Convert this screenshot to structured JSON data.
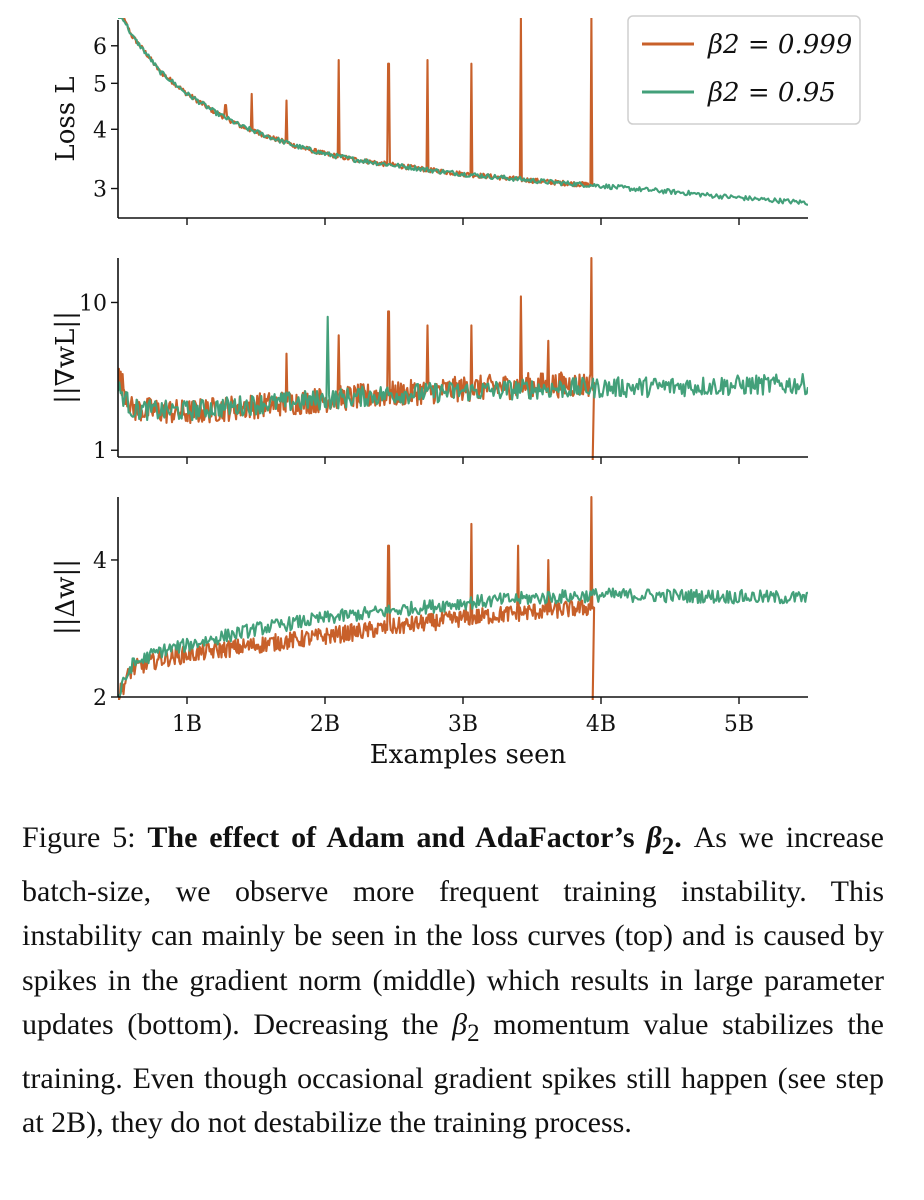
{
  "colors": {
    "orange": "#c8602a",
    "green": "#43a07a"
  },
  "chart_data": [
    {
      "type": "line",
      "panel": "loss",
      "ylabel": "Loss L",
      "yscale": "log",
      "xlim": [
        0.5,
        5.5
      ],
      "ylim": [
        2.6,
        6.8
      ],
      "yticks": [
        3,
        4,
        5,
        6
      ],
      "ytick_labels": [
        "3",
        "4",
        "5",
        "6"
      ],
      "xticks": [
        1,
        2,
        3,
        4,
        5
      ],
      "legend": {
        "location": "top-right",
        "entries": [
          "β2 = 0.999",
          "β2 = 0.95"
        ]
      },
      "series": [
        {
          "name": "β2 = 0.999",
          "color": "#c8602a",
          "x": [
            0.5,
            0.6,
            0.8,
            1.0,
            1.2,
            1.4,
            1.6,
            1.8,
            2.0,
            2.2,
            2.4,
            2.6,
            2.8,
            3.0,
            3.2,
            3.4,
            3.6,
            3.8,
            3.95
          ],
          "y": [
            7.2,
            6.3,
            5.3,
            4.75,
            4.35,
            4.05,
            3.85,
            3.68,
            3.55,
            3.46,
            3.39,
            3.33,
            3.27,
            3.22,
            3.18,
            3.14,
            3.1,
            3.07,
            3.05
          ],
          "spikes": [
            [
              1.28,
              4.5
            ],
            [
              1.47,
              4.75
            ],
            [
              1.72,
              4.6
            ],
            [
              2.1,
              5.6
            ],
            [
              2.46,
              5.5
            ],
            [
              2.74,
              5.6
            ],
            [
              3.06,
              5.5
            ],
            [
              3.42,
              7.0
            ],
            [
              3.93,
              7.0
            ]
          ]
        },
        {
          "name": "β2 = 0.95",
          "color": "#43a07a",
          "x": [
            0.5,
            0.6,
            0.8,
            1.0,
            1.2,
            1.4,
            1.6,
            1.8,
            2.0,
            2.2,
            2.4,
            2.6,
            2.8,
            3.0,
            3.2,
            3.4,
            3.6,
            3.8,
            4.0,
            4.2,
            4.4,
            4.6,
            4.8,
            5.0,
            5.2,
            5.5
          ],
          "y": [
            7.2,
            6.3,
            5.3,
            4.75,
            4.35,
            4.05,
            3.85,
            3.68,
            3.55,
            3.46,
            3.39,
            3.33,
            3.27,
            3.22,
            3.18,
            3.14,
            3.1,
            3.07,
            3.04,
            3.0,
            2.97,
            2.94,
            2.9,
            2.87,
            2.84,
            2.8
          ]
        }
      ]
    },
    {
      "type": "line",
      "panel": "gradient-norm",
      "ylabel": "||∇wL||",
      "yscale": "log",
      "xlim": [
        0.5,
        5.5
      ],
      "ylim": [
        0.9,
        20
      ],
      "yticks": [
        1,
        10
      ],
      "ytick_labels": [
        "1",
        "10"
      ],
      "xticks": [
        1,
        2,
        3,
        4,
        5
      ],
      "series": [
        {
          "name": "β2 = 0.999",
          "color": "#c8602a",
          "x": [
            0.5,
            0.6,
            0.8,
            1.0,
            1.5,
            2.0,
            2.5,
            3.0,
            3.5,
            3.95
          ],
          "y": [
            3.2,
            1.9,
            1.85,
            1.8,
            2.0,
            2.2,
            2.4,
            2.6,
            2.75,
            2.8
          ],
          "spikes": [
            [
              1.72,
              4.5
            ],
            [
              2.1,
              6.0
            ],
            [
              2.46,
              8.7
            ],
            [
              2.74,
              7.0
            ],
            [
              3.06,
              7.0
            ],
            [
              3.42,
              11.0
            ],
            [
              3.62,
              5.5
            ],
            [
              3.93,
              20.0
            ]
          ]
        },
        {
          "name": "β2 = 0.95",
          "color": "#43a07a",
          "x": [
            0.5,
            0.6,
            0.8,
            1.0,
            1.5,
            2.0,
            2.5,
            3.0,
            3.5,
            4.0,
            4.5,
            5.0,
            5.5
          ],
          "y": [
            2.6,
            1.9,
            1.85,
            1.85,
            2.05,
            2.2,
            2.4,
            2.5,
            2.6,
            2.65,
            2.7,
            2.75,
            2.8
          ],
          "spikes": [
            [
              2.02,
              8.0
            ]
          ]
        }
      ]
    },
    {
      "type": "line",
      "panel": "update-norm",
      "ylabel": "||Δw||",
      "yscale": "log",
      "xlim": [
        0.5,
        5.5
      ],
      "ylim": [
        2.0,
        5.5
      ],
      "yticks": [
        2,
        4
      ],
      "ytick_labels": [
        "2",
        "4"
      ],
      "xticks": [
        1,
        2,
        3,
        4,
        5
      ],
      "xtick_labels": [
        "1B",
        "2B",
        "3B",
        "4B",
        "5B"
      ],
      "xlabel": "Examples seen",
      "series": [
        {
          "name": "β2 = 0.999",
          "color": "#c8602a",
          "x": [
            0.5,
            0.6,
            0.8,
            1.0,
            1.5,
            2.0,
            2.5,
            3.0,
            3.5,
            3.95
          ],
          "y": [
            2.0,
            2.3,
            2.42,
            2.48,
            2.6,
            2.72,
            2.85,
            2.98,
            3.08,
            3.15
          ],
          "spikes": [
            [
              2.46,
              4.3
            ],
            [
              3.06,
              4.8
            ],
            [
              3.4,
              4.3
            ],
            [
              3.62,
              4.0
            ],
            [
              3.93,
              5.5
            ]
          ]
        },
        {
          "name": "β2 = 0.95",
          "color": "#43a07a",
          "x": [
            0.5,
            0.6,
            0.8,
            1.0,
            1.5,
            2.0,
            2.5,
            3.0,
            3.5,
            4.0,
            4.5,
            5.0,
            5.5
          ],
          "y": [
            2.0,
            2.35,
            2.52,
            2.6,
            2.82,
            2.98,
            3.1,
            3.22,
            3.3,
            3.35,
            3.34,
            3.32,
            3.3
          ]
        }
      ]
    }
  ],
  "caption": {
    "prefix": "Figure 5: ",
    "bold_text": "The effect of Adam and AdaFactor’s ",
    "symbol_beta": "β",
    "symbol_sub": "2",
    "bold_end": ".",
    "part1": " As we increase batch-size, we observe more frequent training instability. This instability can mainly be seen in the loss curves (top) and is caused by spikes in the gradient norm (middle) which results in large parameter updates (bottom). Decreasing the ",
    "part2": " momentum value stabilizes the training. Even though occasional gradient spikes still happen (see step at 2B), they do not destabilize the training process."
  }
}
